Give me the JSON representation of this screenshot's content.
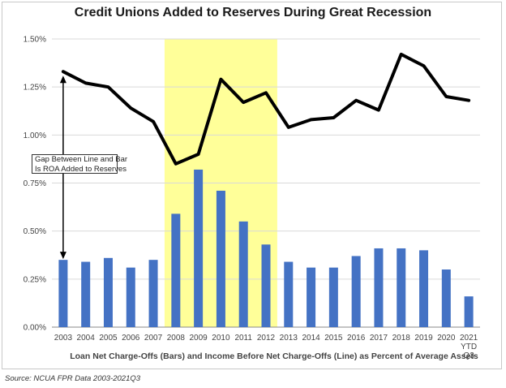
{
  "title": "Credit Unions Added to Reserves During Great Recession",
  "source": "Source: NCUA FPR Data 2003-2021Q3",
  "annotation": {
    "line1": "Gap Between Line and Bar",
    "line2": "Is ROA Added to Reserves"
  },
  "colors": {
    "bars": "#4472c4",
    "line": "#000000",
    "highlight": "#ffff99"
  },
  "chart_data": {
    "type": "bar",
    "categories": [
      "2003",
      "2004",
      "2005",
      "2006",
      "2007",
      "2008",
      "2009",
      "2010",
      "2011",
      "2012",
      "2013",
      "2014",
      "2015",
      "2016",
      "2017",
      "2018",
      "2019",
      "2020",
      "2021"
    ],
    "category_labels": [
      [
        "2003"
      ],
      [
        "2004"
      ],
      [
        "2005"
      ],
      [
        "2006"
      ],
      [
        "2007"
      ],
      [
        "2008"
      ],
      [
        "2009"
      ],
      [
        "2010"
      ],
      [
        "2011"
      ],
      [
        "2012"
      ],
      [
        "2013"
      ],
      [
        "2014"
      ],
      [
        "2015"
      ],
      [
        "2016"
      ],
      [
        "2017"
      ],
      [
        "2018"
      ],
      [
        "2019"
      ],
      [
        "2020"
      ],
      [
        "2021",
        "YTD",
        "Q3"
      ]
    ],
    "series": [
      {
        "name": "Loan Net Charge-Offs",
        "type": "bar",
        "values": [
          0.35,
          0.34,
          0.36,
          0.31,
          0.35,
          0.59,
          0.82,
          0.71,
          0.55,
          0.43,
          0.34,
          0.31,
          0.31,
          0.37,
          0.41,
          0.41,
          0.4,
          0.3,
          0.16
        ]
      },
      {
        "name": "Income Before Net Charge-Offs",
        "type": "line",
        "values": [
          1.33,
          1.27,
          1.25,
          1.14,
          1.07,
          0.85,
          0.9,
          1.29,
          1.17,
          1.22,
          1.04,
          1.08,
          1.09,
          1.18,
          1.13,
          1.42,
          1.36,
          1.2,
          1.18
        ]
      }
    ],
    "highlight_range": [
      "2008",
      "2012"
    ],
    "xlabel": "Loan Net Charge-Offs (Bars) and Income Before Net Charge-Offs (Line) as Percent of Average Assets",
    "ylabel": "",
    "ylim": [
      0,
      1.5
    ],
    "yticks": [
      "0.00%",
      "0.25%",
      "0.50%",
      "0.75%",
      "1.00%",
      "1.25%",
      "1.50%"
    ],
    "grid": true,
    "legend": "none"
  }
}
